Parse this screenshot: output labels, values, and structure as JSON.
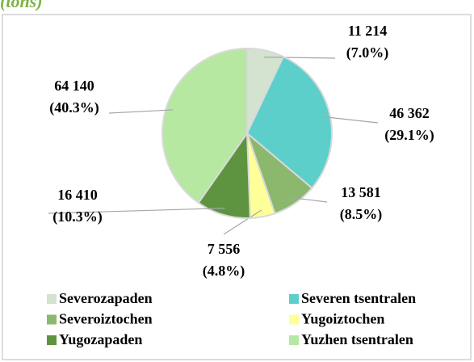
{
  "chart_data": {
    "type": "pie",
    "title": "(tons)",
    "categories": [
      "Severozapaden",
      "Severen tsentralen",
      "Severoiztochen",
      "Yugoiztochen",
      "Yugozapaden",
      "Yuzhen tsentralen"
    ],
    "values": [
      11214,
      46362,
      13581,
      7556,
      16410,
      64140
    ],
    "value_labels": [
      "11 214",
      "46 362",
      "13 581",
      "7 556",
      "16 410",
      "64 140"
    ],
    "percent_labels": [
      "(7.0%)",
      "(29.1%)",
      "(8.5%)",
      "(4.8%)",
      "(10.3%)",
      "(40.3%)"
    ],
    "colors": [
      "#d3e3cf",
      "#5ccfcb",
      "#8cb86e",
      "#ffff99",
      "#5e9440",
      "#b6e8a1"
    ],
    "legend": "bottom"
  }
}
